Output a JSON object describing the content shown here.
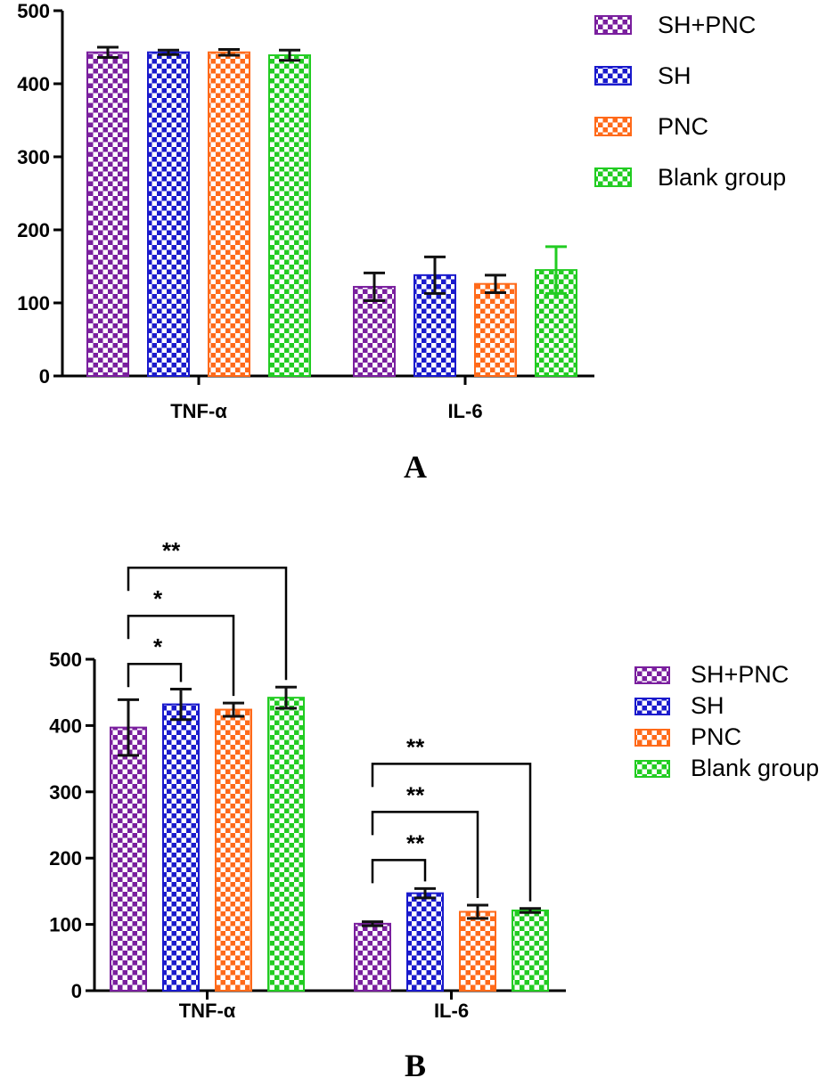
{
  "chart_data": [
    {
      "type": "bar",
      "panel": "A",
      "categories": [
        "TNF-α",
        "IL-6"
      ],
      "ylim": [
        0,
        500
      ],
      "yticks": [
        0,
        100,
        200,
        300,
        400,
        500
      ],
      "series": [
        {
          "name": "SH+PNC",
          "color": "#7a1f9e",
          "values": [
            443,
            122
          ],
          "errors": [
            7,
            19
          ]
        },
        {
          "name": "SH",
          "color": "#1a1acc",
          "values": [
            443,
            138
          ],
          "errors": [
            3,
            25
          ]
        },
        {
          "name": "PNC",
          "color": "#ff6a1a",
          "values": [
            443,
            126
          ],
          "errors": [
            4,
            12
          ]
        },
        {
          "name": "Blank group",
          "color": "#22cc22",
          "values": [
            439,
            145
          ],
          "errors": [
            7,
            32
          ]
        }
      ],
      "significance": []
    },
    {
      "type": "bar",
      "panel": "B",
      "categories": [
        "TNF-α",
        "IL-6"
      ],
      "ylim": [
        0,
        500
      ],
      "yticks": [
        0,
        100,
        200,
        300,
        400,
        500
      ],
      "series": [
        {
          "name": "SH+PNC",
          "color": "#7a1f9e",
          "values": [
            397,
            101
          ],
          "errors": [
            42,
            3
          ]
        },
        {
          "name": "SH",
          "color": "#1a1acc",
          "values": [
            432,
            147
          ],
          "errors": [
            23,
            7
          ]
        },
        {
          "name": "PNC",
          "color": "#ff6a1a",
          "values": [
            424,
            119
          ],
          "errors": [
            10,
            10
          ]
        },
        {
          "name": "Blank group",
          "color": "#22cc22",
          "values": [
            442,
            121
          ],
          "errors": [
            16,
            3
          ]
        }
      ],
      "significance": [
        {
          "category": 0,
          "from": 0,
          "to": 1,
          "label": "*"
        },
        {
          "category": 0,
          "from": 0,
          "to": 2,
          "label": "*"
        },
        {
          "category": 0,
          "from": 0,
          "to": 3,
          "label": "**"
        },
        {
          "category": 1,
          "from": 0,
          "to": 1,
          "label": "**"
        },
        {
          "category": 1,
          "from": 0,
          "to": 2,
          "label": "**"
        },
        {
          "category": 1,
          "from": 0,
          "to": 3,
          "label": "**"
        }
      ]
    }
  ]
}
